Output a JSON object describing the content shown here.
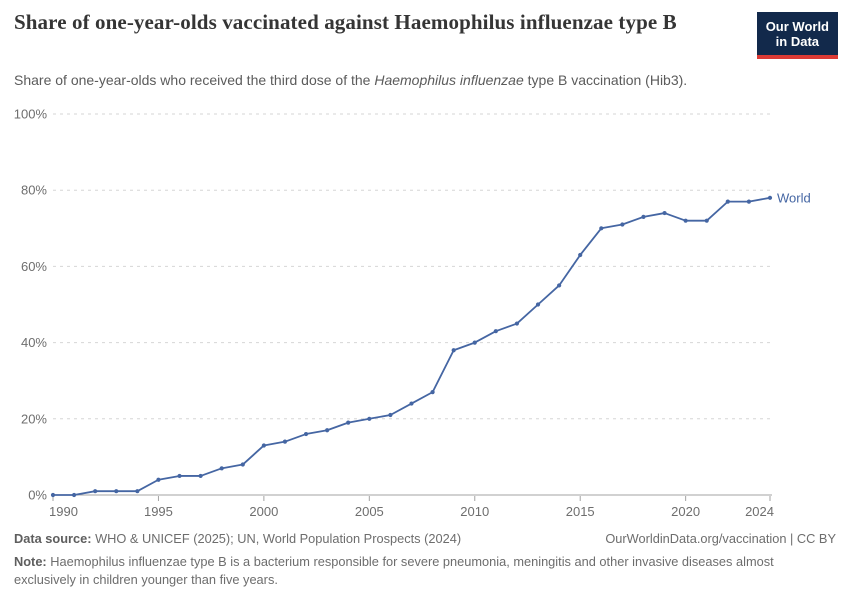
{
  "header": {
    "logo": {
      "line1": "Our World",
      "line2": "in Data",
      "bg_color": "#12294b",
      "accent_color": "#dc3a35"
    }
  },
  "chart_data": {
    "type": "line",
    "title": "Share of one-year-olds vaccinated against Haemophilus influenzae type B",
    "subtitle_parts": {
      "pre": "Share of one-year-olds who received the third dose of the ",
      "italic": "Haemophilus influenzae",
      "post": " type B vaccination (Hib3)."
    },
    "xlabel": "",
    "ylabel": "",
    "xlim": [
      1990,
      2024
    ],
    "ylim": [
      0,
      100
    ],
    "x_ticks": [
      1990,
      1995,
      2000,
      2005,
      2010,
      2015,
      2020,
      2024
    ],
    "y_ticks": [
      0,
      20,
      40,
      60,
      80,
      100
    ],
    "y_tick_suffix": "%",
    "grid": "horizontal-dashed",
    "legend_position": "end-of-line",
    "x": [
      1990,
      1991,
      1992,
      1993,
      1994,
      1995,
      1996,
      1997,
      1998,
      1999,
      2000,
      2001,
      2002,
      2003,
      2004,
      2005,
      2006,
      2007,
      2008,
      2009,
      2010,
      2011,
      2012,
      2013,
      2014,
      2015,
      2016,
      2017,
      2018,
      2019,
      2020,
      2021,
      2022,
      2023,
      2024
    ],
    "series": [
      {
        "name": "World",
        "color": "#4566a3",
        "values": [
          0,
          0,
          1,
          1,
          1,
          4,
          5,
          5,
          7,
          8,
          13,
          14,
          16,
          17,
          19,
          20,
          21,
          24,
          27,
          38,
          40,
          43,
          45,
          50,
          55,
          63,
          70,
          71,
          73,
          74,
          72,
          72,
          77,
          77,
          78
        ]
      }
    ],
    "colors": {
      "gridline": "#d6d6d6",
      "axis_line": "#a3a3a3",
      "tick_label": "#6e6e6e"
    }
  },
  "footer": {
    "source_label": "Data source:",
    "source_text": " WHO & UNICEF (2025); UN, World Population Prospects (2024)",
    "link_text": "OurWorldinData.org/vaccination | CC BY",
    "note_label": "Note:",
    "note_text": " Haemophilus influenzae type B is a bacterium responsible for severe pneumonia, meningitis and other invasive diseases almost exclusively in children younger than five years."
  }
}
